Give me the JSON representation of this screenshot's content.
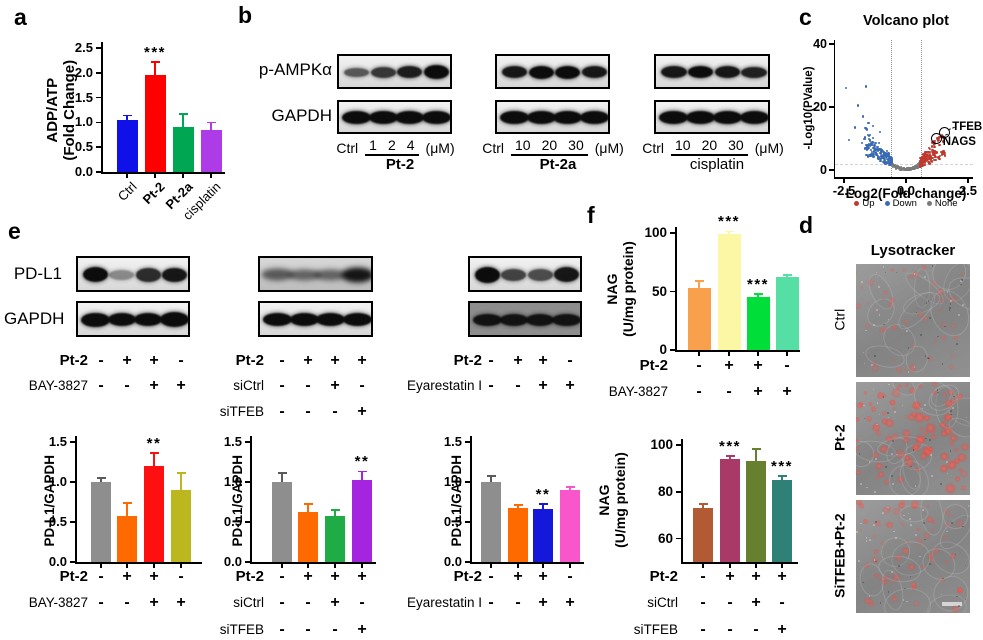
{
  "panel_a": {
    "letter": "a"
  },
  "panel_b": {
    "letter": "b",
    "antibodies": [
      "p-AMPKα",
      "GAPDH"
    ],
    "groups": [
      {
        "control": "Ctrl",
        "doses": [
          "1",
          "2",
          "4"
        ],
        "unit": "(μM)",
        "drug": "Pt-2",
        "drug_bold": true,
        "bands_top": [
          0.65,
          0.8,
          0.92,
          1.0
        ],
        "bands_top_h": [
          9,
          11,
          12.5,
          14
        ],
        "bands_bottom": [
          1,
          1,
          1,
          1
        ]
      },
      {
        "control": "Ctrl",
        "doses": [
          "10",
          "20",
          "30"
        ],
        "unit": "(μM)",
        "drug": "Pt-2a",
        "drug_bold": true,
        "bands_top": [
          0.95,
          1.0,
          1.0,
          0.95
        ],
        "bands_top_h": [
          12,
          13,
          13,
          12
        ],
        "bands_bottom": [
          1,
          1,
          1,
          1
        ]
      },
      {
        "control": "Ctrl",
        "doses": [
          "10",
          "20",
          "30"
        ],
        "unit": "(μM)",
        "drug": "cisplatin",
        "drug_bold": false,
        "bands_top": [
          0.95,
          1.0,
          0.95,
          0.9
        ],
        "bands_top_h": [
          12,
          12,
          12,
          11
        ],
        "bands_bottom": [
          1,
          1,
          1,
          1
        ]
      }
    ]
  },
  "panel_c": {
    "letter": "c"
  },
  "panel_d": {
    "letter": "d",
    "title": "Lysotracker",
    "images": [
      {
        "label": "Ctrl",
        "bold": false,
        "red_intensity": "low"
      },
      {
        "label": "Pt-2",
        "bold": true,
        "red_intensity": "high"
      },
      {
        "label": "SiTFEB+Pt-2",
        "bold": true,
        "red_intensity": "medium"
      }
    ],
    "scale_bar": true
  },
  "panel_e": {
    "letter": "e",
    "antibodies": [
      "PD-L1",
      "GAPDH"
    ],
    "groups": [
      {
        "style": "sharp",
        "bands_top": [
          1.0,
          0.42,
          0.85,
          0.95
        ],
        "bands_top_h": [
          15,
          10,
          14,
          14
        ],
        "bands_bottom": [
          1,
          1,
          1,
          1
        ],
        "bands_bottom_h": [
          14,
          13,
          13,
          15
        ]
      },
      {
        "style": "fuzzy",
        "bands_top": [
          0.6,
          0.55,
          0.55,
          0.95
        ],
        "bands_top_h": [
          11,
          10,
          10,
          14
        ],
        "bands_bottom": [
          1,
          1,
          1,
          1
        ],
        "bands_bottom_h": [
          13,
          13,
          13,
          13
        ]
      },
      {
        "style": "sharp",
        "bands_top": [
          1.0,
          0.75,
          0.7,
          0.95
        ],
        "bands_top_h": [
          16,
          12,
          12,
          15
        ],
        "bands_bottom": [
          0.95,
          0.95,
          0.95,
          0.95
        ],
        "bands_bottom_h": [
          12,
          12,
          12,
          12
        ],
        "bottom_bg": "#8d8d8d"
      }
    ]
  },
  "panel_f": {
    "letter": "f"
  },
  "chart_data": [
    {
      "id": "a",
      "panel": "a",
      "type": "bar",
      "ylabel_lines": [
        "ADP/ATP",
        "(Fold Change)"
      ],
      "categories": [
        "Ctrl",
        "Pt-2",
        "Pt-2a",
        "cisplatin"
      ],
      "values": [
        1.05,
        1.95,
        0.9,
        0.85
      ],
      "errors": [
        0.07,
        0.25,
        0.25,
        0.13
      ],
      "significance": [
        "",
        "***",
        "",
        ""
      ],
      "colors": [
        "#1010e8",
        "#ff0000",
        "#00a651",
        "#ad3be8"
      ],
      "ylim": [
        0,
        2.5
      ],
      "yticks": [
        0,
        0.5,
        1,
        1.5,
        2,
        2.5
      ],
      "ytick_labels": [
        "0.0",
        "0.5",
        "1.0",
        "1.5",
        "2.0",
        "2.5"
      ]
    },
    {
      "id": "volcano",
      "panel": "c",
      "type": "scatter",
      "title": "Volcano plot",
      "xlabel": "Log2(Fold change)",
      "ylabel": "-Log10(PValue)",
      "xlim": [
        -2.9,
        2.7
      ],
      "ylim": [
        0,
        42
      ],
      "xticks": [
        -2.5,
        0,
        2.5
      ],
      "xtick_labels": [
        "-2.5",
        "0.0",
        "2.5"
      ],
      "yticks": [
        0,
        20,
        40
      ],
      "ytick_labels": [
        "0",
        "20",
        "40"
      ],
      "thresholds": {
        "fold_change": [
          -0.6,
          0.6
        ],
        "pvalue_line": 2
      },
      "groups": [
        {
          "name": "Up",
          "color": "#bf3a2e",
          "approx_count": 150
        },
        {
          "name": "Down",
          "color": "#3b6ab5",
          "approx_count": 150
        },
        {
          "name": "None",
          "color": "#7a7a7a",
          "approx_count": 150
        }
      ],
      "labeled_points": [
        {
          "name": "TFEB",
          "x": 1.5,
          "y": 12.3
        },
        {
          "name": "NAGS",
          "x": 1.2,
          "y": 10.2
        }
      ]
    },
    {
      "id": "e1",
      "panel": "e",
      "type": "bar",
      "ylabel_lines": [
        "PD-L1/GAPDH"
      ],
      "treatments": [
        {
          "label": "Pt-2",
          "bold": true,
          "values": [
            "-",
            "+",
            "+",
            "-"
          ]
        },
        {
          "label": "BAY-3827",
          "bold": false,
          "values": [
            "-",
            "-",
            "+",
            "+"
          ]
        }
      ],
      "values": [
        1.0,
        0.58,
        1.2,
        0.9
      ],
      "errors": [
        0.04,
        0.15,
        0.15,
        0.2
      ],
      "significance": [
        "",
        "",
        "**",
        ""
      ],
      "colors": [
        "#8e8e8e",
        "#ff6a00",
        "#ff1010",
        "#bdb71f"
      ],
      "ylim": [
        0,
        1.5
      ],
      "yticks": [
        0,
        0.5,
        1,
        1.5
      ],
      "ytick_labels": [
        "0.0",
        "0.5",
        "1.0",
        "1.5"
      ]
    },
    {
      "id": "e2",
      "panel": "e",
      "type": "bar",
      "ylabel_lines": [
        "PD-L1/GAPDH"
      ],
      "treatments": [
        {
          "label": "Pt-2",
          "bold": true,
          "values": [
            "-",
            "+",
            "+",
            "+"
          ]
        },
        {
          "label": "siCtrl",
          "bold": false,
          "values": [
            "-",
            "-",
            "+",
            "-"
          ]
        },
        {
          "label": "siTFEB",
          "bold": false,
          "values": [
            "-",
            "-",
            "-",
            "+"
          ]
        }
      ],
      "values": [
        1.0,
        0.63,
        0.58,
        1.02
      ],
      "errors": [
        0.1,
        0.08,
        0.06,
        0.1
      ],
      "significance": [
        "",
        "",
        "",
        "**"
      ],
      "colors": [
        "#8e8e8e",
        "#ff6a00",
        "#1fab45",
        "#a524e0"
      ],
      "ylim": [
        0,
        1.5
      ],
      "yticks": [
        0,
        0.5,
        1,
        1.5
      ],
      "ytick_labels": [
        "0.0",
        "0.5",
        "1.0",
        "1.5"
      ]
    },
    {
      "id": "e3",
      "panel": "e",
      "type": "bar",
      "ylabel_lines": [
        "PD-L1/GAPDH"
      ],
      "treatments": [
        {
          "label": "Pt-2",
          "bold": true,
          "values": [
            "-",
            "+",
            "+",
            "-"
          ]
        },
        {
          "label": "Eyarestatin I",
          "bold": false,
          "values": [
            "-",
            "-",
            "+",
            "+"
          ]
        }
      ],
      "values": [
        1.0,
        0.67,
        0.66,
        0.9
      ],
      "errors": [
        0.06,
        0.03,
        0.05,
        0.03
      ],
      "significance": [
        "",
        "",
        "**",
        ""
      ],
      "colors": [
        "#8e8e8e",
        "#ff6a00",
        "#1518d8",
        "#f956cb"
      ],
      "ylim": [
        0,
        1.5
      ],
      "yticks": [
        0,
        0.5,
        1,
        1.5
      ],
      "ytick_labels": [
        "0.0",
        "0.5",
        "1.0",
        "1.5"
      ]
    },
    {
      "id": "f1",
      "panel": "f",
      "type": "bar",
      "ylabel_lines": [
        "NAG",
        "(U/mg protein)"
      ],
      "treatments": [
        {
          "label": "Pt-2",
          "bold": true,
          "values": [
            "-",
            "+",
            "+",
            "-"
          ]
        },
        {
          "label": "BAY-3827",
          "bold": false,
          "values": [
            "-",
            "-",
            "+",
            "+"
          ]
        }
      ],
      "values": [
        53,
        99,
        45,
        62
      ],
      "errors": [
        5,
        1.5,
        2,
        1.5
      ],
      "significance": [
        "",
        "***",
        "***",
        ""
      ],
      "colors": [
        "#f9a04c",
        "#fbf7a5",
        "#00de3a",
        "#55dfa5"
      ],
      "ylim": [
        0,
        100
      ],
      "yticks": [
        0,
        50,
        100
      ],
      "ytick_labels": [
        "0",
        "50",
        "100"
      ]
    },
    {
      "id": "f2",
      "panel": "f",
      "type": "bar",
      "ylabel_lines": [
        "NAG",
        "(U/mg protein)"
      ],
      "treatments": [
        {
          "label": "Pt-2",
          "bold": true,
          "values": [
            "-",
            "+",
            "+",
            "+"
          ]
        },
        {
          "label": "siCtrl",
          "bold": false,
          "values": [
            "-",
            "-",
            "+",
            "-"
          ]
        },
        {
          "label": "siTFEB",
          "bold": false,
          "values": [
            "-",
            "-",
            "-",
            "+"
          ]
        }
      ],
      "values": [
        73,
        94,
        93,
        85
      ],
      "errors": [
        1.5,
        1,
        5,
        1.5
      ],
      "significance": [
        "",
        "***",
        "",
        "***"
      ],
      "colors": [
        "#b25a34",
        "#a93a67",
        "#66802f",
        "#2f8077"
      ],
      "ylim": [
        50,
        100
      ],
      "yticks": [
        60,
        80,
        100
      ],
      "ytick_labels": [
        "60",
        "80",
        "100"
      ]
    }
  ]
}
